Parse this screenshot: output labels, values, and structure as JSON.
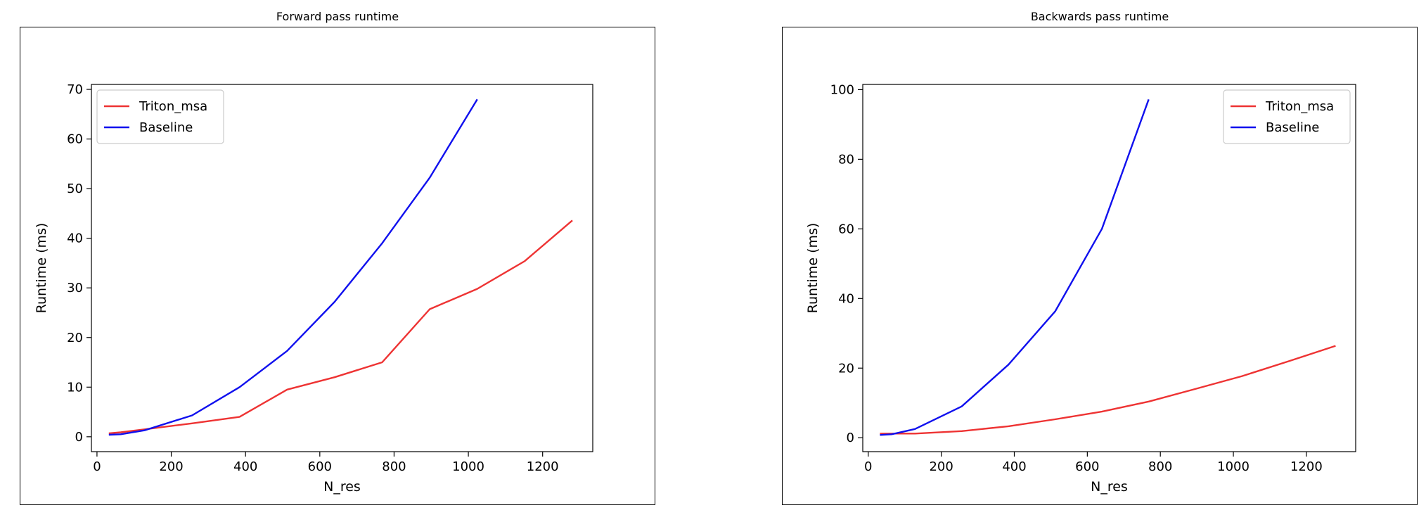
{
  "chart_data": [
    {
      "type": "line",
      "title": "Forward pass runtime",
      "xlabel": "N_res",
      "ylabel": "Runtime (ms)",
      "xlim": [
        -15,
        1335
      ],
      "ylim": [
        -3,
        71
      ],
      "xticks": [
        0,
        200,
        400,
        600,
        800,
        1000,
        1200
      ],
      "yticks": [
        0,
        10,
        20,
        30,
        40,
        50,
        60,
        70
      ],
      "legend_position": "upper-left",
      "series": [
        {
          "name": "Triton_msa",
          "color": "#ee3333",
          "x": [
            32,
            64,
            128,
            256,
            384,
            512,
            640,
            768,
            896,
            1024,
            1152,
            1280
          ],
          "y": [
            0.7,
            0.9,
            1.5,
            2.7,
            4.0,
            9.5,
            12.0,
            15.0,
            25.7,
            29.8,
            35.4,
            43.6
          ]
        },
        {
          "name": "Baseline",
          "color": "#1010ee",
          "x": [
            32,
            64,
            128,
            256,
            384,
            512,
            640,
            768,
            896,
            1024
          ],
          "y": [
            0.4,
            0.5,
            1.3,
            4.3,
            10.0,
            17.3,
            27.2,
            39.0,
            52.2,
            68.0
          ]
        }
      ]
    },
    {
      "type": "line",
      "title": "Backwards pass runtime",
      "xlabel": "N_res",
      "ylabel": "Runtime (ms)",
      "xlim": [
        -15,
        1335
      ],
      "ylim": [
        -4,
        101.5
      ],
      "xticks": [
        0,
        200,
        400,
        600,
        800,
        1000,
        1200
      ],
      "yticks": [
        0,
        20,
        40,
        60,
        80,
        100
      ],
      "legend_position": "upper-right",
      "series": [
        {
          "name": "Triton_msa",
          "color": "#ee3333",
          "x": [
            32,
            64,
            128,
            256,
            384,
            512,
            640,
            768,
            896,
            1024,
            1152,
            1280
          ],
          "y": [
            1.2,
            1.2,
            1.2,
            1.9,
            3.3,
            5.3,
            7.5,
            10.4,
            14.0,
            17.7,
            22.0,
            26.4
          ]
        },
        {
          "name": "Baseline",
          "color": "#1010ee",
          "x": [
            32,
            64,
            128,
            256,
            384,
            512,
            640,
            768
          ],
          "y": [
            0.8,
            1.0,
            2.5,
            9.0,
            21.0,
            36.3,
            60.0,
            97.2
          ]
        }
      ]
    }
  ]
}
